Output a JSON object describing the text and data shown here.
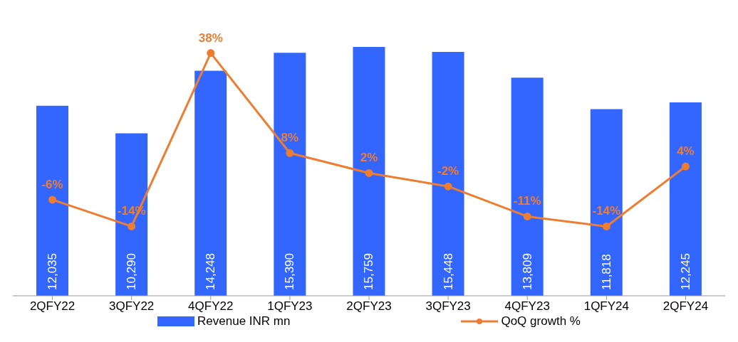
{
  "chart_data": {
    "type": "bar",
    "categories": [
      "2QFY22",
      "3QFY22",
      "4QFY22",
      "1QFY23",
      "2QFY23",
      "3QFY23",
      "4QFY23",
      "1QFY24",
      "2QFY24"
    ],
    "series": [
      {
        "name": "Revenue INR mn",
        "color": "#3366ff",
        "values": [
          12035,
          10290,
          14248,
          15390,
          15759,
          15448,
          13809,
          11818,
          12245
        ],
        "value_labels": [
          "12,035",
          "10,290",
          "14,248",
          "15,390",
          "15,759",
          "15,448",
          "13,809",
          "11,818",
          "12,245"
        ]
      },
      {
        "name": "QoQ growth %",
        "type": "line",
        "axis": "y2",
        "color": "#ed7d31",
        "marker": "circle",
        "values": [
          -6,
          -14,
          38,
          8,
          2,
          -2,
          -11,
          -14,
          4
        ],
        "value_labels": [
          "-6%",
          "-14%",
          "38%",
          "8%",
          "2%",
          "-2%",
          "-11%",
          "-14%",
          "4%"
        ]
      }
    ],
    "legend": "bottom",
    "grid": false
  }
}
